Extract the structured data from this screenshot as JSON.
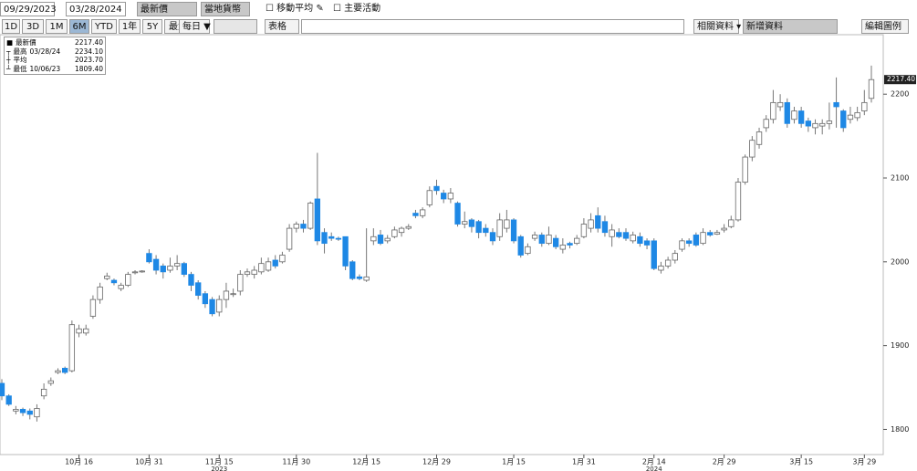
{
  "toolbar": {
    "start_date": "09/29/2023",
    "end_date": "03/28/2024",
    "field": "最新價",
    "currency": "當地貨幣",
    "moving_average": "移動平均",
    "key_events": "主要活動",
    "periods": [
      "1D",
      "3D",
      "1M",
      "6M",
      "YTD",
      "1年",
      "5Y",
      "最大"
    ],
    "selected_period": "6M",
    "frequency": "每日 ▼",
    "table": "表格",
    "related": "相關資料 ▾",
    "add_data": "新增資料",
    "edit_legend": "編輯圖例"
  },
  "chart_data": {
    "type": "candlestick",
    "legend": [
      {
        "name": "最新價",
        "value": "2217.40"
      },
      {
        "name": "最高",
        "date": "03/28/24",
        "value": "2234.10"
      },
      {
        "name": "平均",
        "value": "2023.70"
      },
      {
        "name": "最低",
        "date": "10/06/23",
        "value": "1809.40"
      }
    ],
    "last_price": {
      "value": 2217.4,
      "label": "2217.40"
    },
    "open": [
      1855,
      1840,
      1822,
      1824,
      1822,
      1815,
      1840,
      1855,
      1868,
      1873,
      1870,
      1915,
      1915,
      1935,
      1955,
      1980,
      1978,
      1968,
      1972,
      1987,
      1988,
      2010,
      2003,
      1995,
      1990,
      1995,
      1998,
      1985,
      1975,
      1962,
      1955,
      1940,
      1955,
      1962,
      1965,
      1985,
      1985,
      1988,
      1990,
      2002,
      2000,
      2015,
      2040,
      2045,
      2040,
      2075,
      2035,
      2030,
      2028,
      2030,
      2000,
      1982,
      1978,
      2025,
      2032,
      2025,
      2030,
      2035,
      2040,
      2058,
      2055,
      2068,
      2090,
      2082,
      2075,
      2070,
      2045,
      2050,
      2048,
      2040,
      2035,
      2030,
      2040,
      2050,
      2030,
      2010,
      2028,
      2032,
      2022,
      2028,
      2015,
      2022,
      2022,
      2030,
      2040,
      2055,
      2048,
      2030,
      2035,
      2035,
      2025,
      2030,
      2025,
      2025,
      1990,
      1995,
      2002,
      2015,
      2025,
      2032,
      2022,
      2035,
      2033,
      2038,
      2042,
      2050,
      2095,
      2125,
      2140,
      2160,
      2170,
      2185,
      2190,
      2170,
      2180,
      2168,
      2160,
      2162,
      2165,
      2190,
      2180,
      2170,
      2172,
      2180,
      2195
    ],
    "high": [
      1860,
      1842,
      1828,
      1826,
      1825,
      1830,
      1855,
      1862,
      1873,
      1875,
      1930,
      1925,
      1925,
      1960,
      1975,
      1987,
      1980,
      1975,
      1988,
      1990,
      1990,
      2015,
      2008,
      1998,
      2005,
      2008,
      2000,
      1988,
      1978,
      1965,
      1958,
      1960,
      1975,
      1968,
      1990,
      1992,
      1995,
      2005,
      2005,
      2008,
      2012,
      2045,
      2048,
      2050,
      2072,
      2130,
      2040,
      2035,
      2030,
      2030,
      2002,
      1985,
      2040,
      2040,
      2038,
      2032,
      2042,
      2042,
      2045,
      2062,
      2065,
      2090,
      2098,
      2086,
      2088,
      2072,
      2060,
      2052,
      2050,
      2045,
      2040,
      2058,
      2062,
      2052,
      2032,
      2022,
      2036,
      2035,
      2042,
      2032,
      2028,
      2024,
      2032,
      2052,
      2058,
      2065,
      2055,
      2045,
      2040,
      2040,
      2036,
      2035,
      2028,
      2028,
      2000,
      2006,
      2014,
      2028,
      2028,
      2035,
      2040,
      2038,
      2038,
      2045,
      2055,
      2100,
      2128,
      2150,
      2160,
      2175,
      2205,
      2200,
      2195,
      2185,
      2185,
      2172,
      2170,
      2170,
      2190,
      2220,
      2182,
      2185,
      2185,
      2205,
      2234.1
    ],
    "low": [
      1835,
      1828,
      1818,
      1816,
      1812,
      1809.4,
      1836,
      1852,
      1866,
      1866,
      1868,
      1910,
      1912,
      1932,
      1950,
      1978,
      1972,
      1965,
      1970,
      1985,
      1987,
      1998,
      1985,
      1980,
      1987,
      1990,
      1982,
      1965,
      1955,
      1945,
      1935,
      1935,
      1945,
      1958,
      1960,
      1982,
      1980,
      1985,
      1988,
      1992,
      1998,
      2012,
      2035,
      2035,
      2038,
      2020,
      2010,
      2025,
      2025,
      1990,
      1978,
      1978,
      1976,
      2020,
      2020,
      2022,
      2028,
      2030,
      2038,
      2052,
      2052,
      2065,
      2080,
      2070,
      2070,
      2042,
      2040,
      2035,
      2028,
      2030,
      2020,
      2025,
      2035,
      2022,
      2005,
      2008,
      2025,
      2018,
      2020,
      2015,
      2010,
      2016,
      2020,
      2028,
      2035,
      2035,
      2030,
      2018,
      2028,
      2025,
      2022,
      2018,
      2015,
      1990,
      1986,
      1992,
      1998,
      2012,
      2018,
      2018,
      2020,
      2030,
      2032,
      2035,
      2040,
      2048,
      2092,
      2120,
      2135,
      2155,
      2165,
      2180,
      2160,
      2165,
      2160,
      2155,
      2152,
      2152,
      2158,
      2160,
      2155,
      2165,
      2168,
      2175,
      2190
    ],
    "close": [
      1840,
      1830,
      1824,
      1820,
      1818,
      1825,
      1848,
      1858,
      1870,
      1868,
      1925,
      1920,
      1920,
      1955,
      1970,
      1983,
      1975,
      1972,
      1985,
      1988,
      1989,
      2000,
      1990,
      1988,
      1995,
      1998,
      1985,
      1972,
      1960,
      1950,
      1938,
      1955,
      1965,
      1962,
      1985,
      1988,
      1990,
      1998,
      2000,
      1995,
      2008,
      2040,
      2045,
      2040,
      2070,
      2025,
      2022,
      2028,
      2027,
      1995,
      1980,
      1980,
      1982,
      2030,
      2022,
      2028,
      2038,
      2040,
      2042,
      2055,
      2062,
      2085,
      2085,
      2075,
      2082,
      2045,
      2048,
      2042,
      2035,
      2035,
      2025,
      2050,
      2050,
      2025,
      2008,
      2018,
      2032,
      2022,
      2032,
      2018,
      2020,
      2020,
      2028,
      2045,
      2050,
      2040,
      2035,
      2038,
      2030,
      2028,
      2032,
      2022,
      2020,
      1992,
      1995,
      2002,
      2010,
      2025,
      2022,
      2020,
      2035,
      2032,
      2035,
      2040,
      2050,
      2095,
      2125,
      2145,
      2155,
      2170,
      2190,
      2190,
      2165,
      2180,
      2165,
      2162,
      2165,
      2165,
      2168,
      2185,
      2160,
      2175,
      2178,
      2190,
      2217.4
    ],
    "up_color": "#ffffff",
    "down_color": "#1e88e5",
    "ylim": [
      1770,
      2271
    ],
    "yticks": [
      1800,
      1900,
      2000,
      2100,
      2200
    ],
    "xticks": [
      {
        "value": 11,
        "label": "10月 16"
      },
      {
        "value": 21,
        "label": "10月 31"
      },
      {
        "value": 31,
        "label": "11月 15"
      },
      {
        "value": 42,
        "label": "11月 30"
      },
      {
        "value": 52,
        "label": "12月 15"
      },
      {
        "value": 62,
        "label": "12月 29"
      },
      {
        "value": 73,
        "label": "1月 15"
      },
      {
        "value": 83,
        "label": "1月 31"
      },
      {
        "value": 93,
        "label": "2月 14"
      },
      {
        "value": 103,
        "label": "2月 29"
      },
      {
        "value": 114,
        "label": "3月 15"
      },
      {
        "value": 123,
        "label": "3月 29"
      }
    ],
    "year_labels": [
      "2023",
      "2024"
    ]
  }
}
